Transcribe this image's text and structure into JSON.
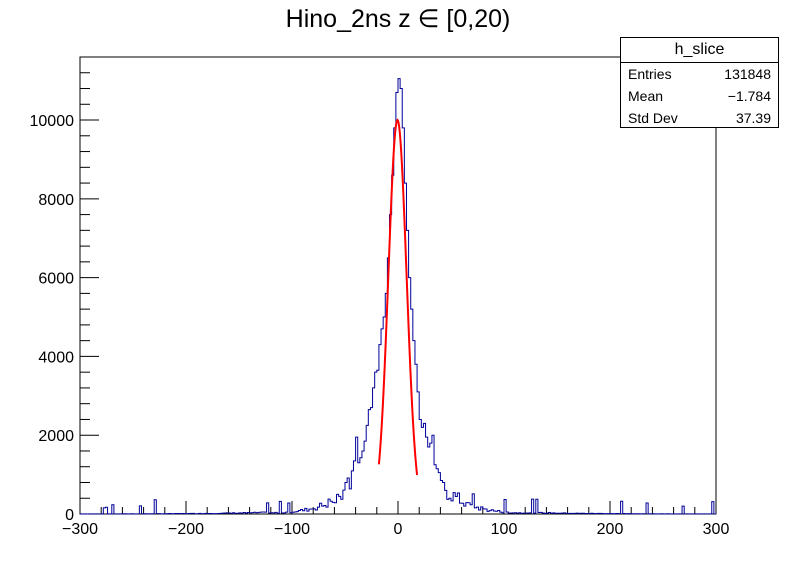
{
  "chart_data": {
    "type": "histogram",
    "title": "Hino_2ns z ∈ [0,20)",
    "xlabel": "",
    "ylabel": "",
    "xlim": [
      -300,
      300
    ],
    "ylim": [
      0,
      11600
    ],
    "x_ticks": [
      "−300",
      "−200",
      "−100",
      "0",
      "100",
      "200",
      "300"
    ],
    "y_ticks": [
      "0",
      "2000",
      "4000",
      "6000",
      "8000",
      "10000"
    ],
    "grid": false,
    "bin_width": 2,
    "histogram_color": "#000099",
    "fit_color": "#ff0000",
    "peak_bins": [
      {
        "x": -42,
        "y": 1350
      },
      {
        "x": -40,
        "y": 1950
      },
      {
        "x": -38,
        "y": 1300
      },
      {
        "x": -34,
        "y": 1600
      },
      {
        "x": -32,
        "y": 1850
      },
      {
        "x": -30,
        "y": 2250
      },
      {
        "x": -28,
        "y": 2650
      },
      {
        "x": -26,
        "y": 2700
      },
      {
        "x": -24,
        "y": 3200
      },
      {
        "x": -22,
        "y": 3600
      },
      {
        "x": -20,
        "y": 3650
      },
      {
        "x": -18,
        "y": 4300
      },
      {
        "x": -16,
        "y": 4700
      },
      {
        "x": -14,
        "y": 5000
      },
      {
        "x": -12,
        "y": 5600
      },
      {
        "x": -10,
        "y": 6500
      },
      {
        "x": -8,
        "y": 7600
      },
      {
        "x": -6,
        "y": 8600
      },
      {
        "x": -4,
        "y": 9800
      },
      {
        "x": -2,
        "y": 10700
      },
      {
        "x": 0,
        "y": 11050
      },
      {
        "x": 2,
        "y": 10800
      },
      {
        "x": 4,
        "y": 9800
      },
      {
        "x": 6,
        "y": 8400
      },
      {
        "x": 8,
        "y": 7200
      },
      {
        "x": 10,
        "y": 6000
      },
      {
        "x": 12,
        "y": 5200
      },
      {
        "x": 14,
        "y": 4400
      },
      {
        "x": 16,
        "y": 3800
      },
      {
        "x": 18,
        "y": 3100
      },
      {
        "x": 20,
        "y": 2400
      },
      {
        "x": 22,
        "y": 2200
      },
      {
        "x": 24,
        "y": 2300
      },
      {
        "x": 26,
        "y": 1950
      },
      {
        "x": 28,
        "y": 1700
      },
      {
        "x": 30,
        "y": 1800
      },
      {
        "x": 32,
        "y": 2000
      },
      {
        "x": 34,
        "y": 1250
      },
      {
        "x": 36,
        "y": 1150
      },
      {
        "x": 38,
        "y": 1050
      },
      {
        "x": 40,
        "y": 850
      },
      {
        "x": 42,
        "y": 800
      }
    ],
    "fit": {
      "type": "gaussian",
      "mean": -0.5,
      "sigma": 8.6,
      "amplitude": 10000,
      "range": [
        -18,
        18
      ]
    },
    "stats": {
      "name": "h_slice",
      "rows": [
        {
          "label": "Entries",
          "value": "131848"
        },
        {
          "label": "Mean",
          "value": "−1.784"
        },
        {
          "label": "Std Dev",
          "value": "37.39"
        }
      ]
    }
  }
}
